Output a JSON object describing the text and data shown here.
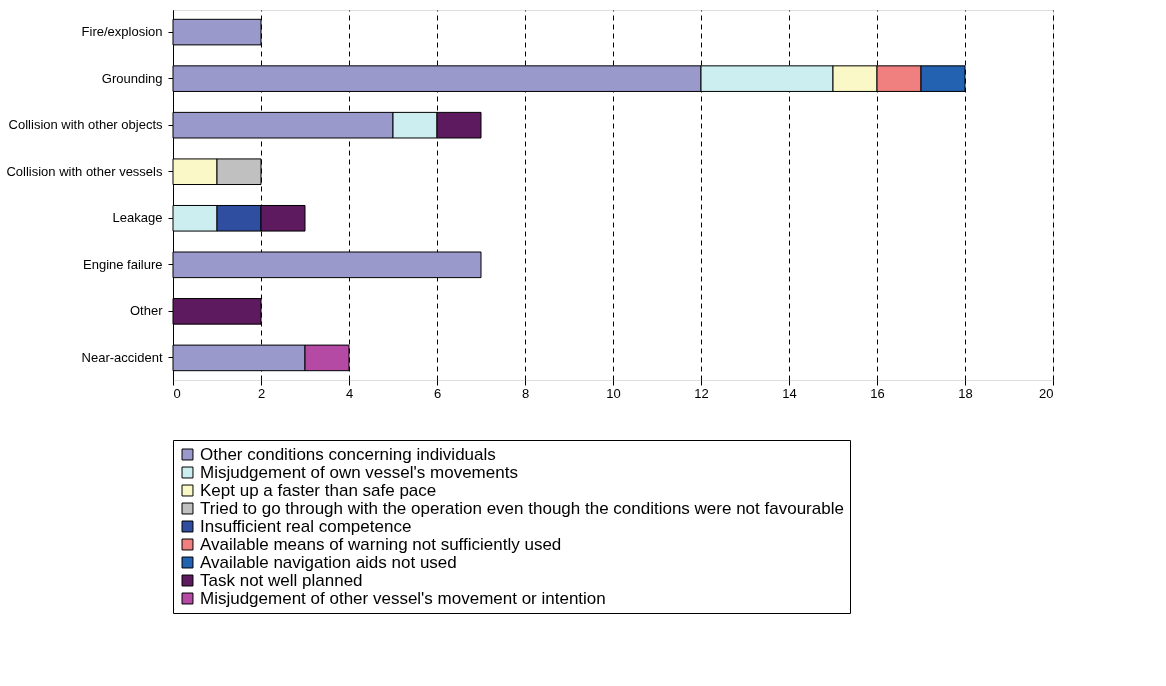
{
  "chart_data": {
    "type": "bar",
    "orientation": "horizontal",
    "stacked": true,
    "categories": [
      "Fire/explosion",
      "Grounding",
      "Collision with other objects",
      "Collision with other vessels",
      "Leakage",
      "Engine failure",
      "Other",
      "Near-accident"
    ],
    "series": [
      {
        "name": "Other conditions concerning individuals",
        "color": "#9999cc",
        "values": [
          2,
          12,
          5,
          null,
          null,
          7,
          null,
          3
        ]
      },
      {
        "name": "Misjudgement of own vessel's movements",
        "color": "#cceef0",
        "values": [
          null,
          3,
          1,
          null,
          1,
          null,
          null,
          null
        ]
      },
      {
        "name": "Kept up a faster than safe pace",
        "color": "#fbf8c8",
        "values": [
          null,
          1,
          null,
          1,
          null,
          null,
          null,
          null
        ]
      },
      {
        "name": "Tried to go through with the operation even though the conditions were not favourable",
        "color": "#c0c0c0",
        "values": [
          null,
          null,
          null,
          1,
          null,
          null,
          null,
          null
        ]
      },
      {
        "name": "Insufficient real competence",
        "color": "#2f4ea0",
        "values": [
          null,
          null,
          null,
          null,
          1,
          null,
          null,
          null
        ]
      },
      {
        "name": "Available means of warning not sufficiently used",
        "color": "#f08080",
        "values": [
          null,
          1,
          null,
          null,
          null,
          null,
          null,
          null
        ]
      },
      {
        "name": "Available navigation aids not used",
        "color": "#2362b0",
        "values": [
          null,
          1,
          null,
          null,
          null,
          null,
          null,
          null
        ]
      },
      {
        "name": "Task not well planned",
        "color": "#5e1a5e",
        "values": [
          null,
          null,
          1,
          null,
          1,
          null,
          2,
          null
        ]
      },
      {
        "name": "Misjudgement of other vessel's movement or intention",
        "color": "#b44aa4",
        "values": [
          null,
          null,
          null,
          null,
          null,
          null,
          null,
          1
        ]
      }
    ],
    "xlim": [
      0,
      20
    ],
    "xticks": [
      0,
      2,
      4,
      6,
      8,
      10,
      12,
      14,
      16,
      18,
      20
    ],
    "grid": "x",
    "legend": "bottom"
  }
}
